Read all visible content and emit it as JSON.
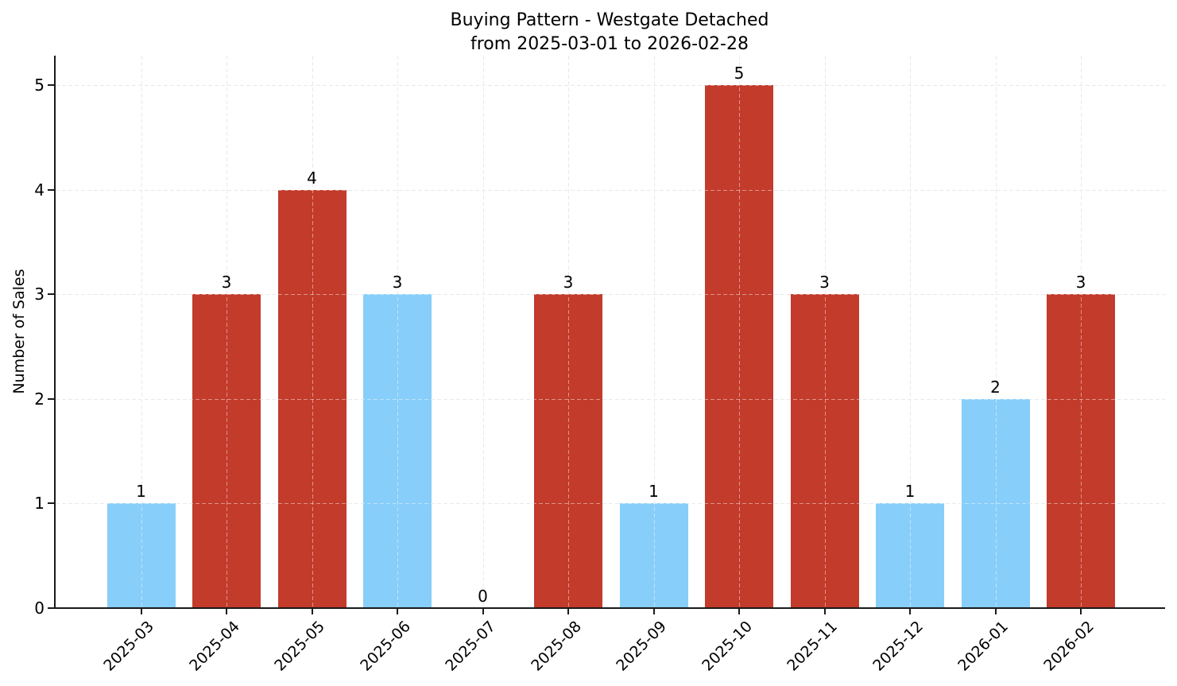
{
  "chart_data": {
    "type": "bar",
    "title": "Buying Pattern - Westgate Detached",
    "subtitle": "from 2025-03-01 to 2026-02-28",
    "ylabel": "Number of Sales",
    "xlabel": "",
    "categories": [
      "2025-03",
      "2025-04",
      "2025-05",
      "2025-06",
      "2025-07",
      "2025-08",
      "2025-09",
      "2025-10",
      "2025-11",
      "2025-12",
      "2026-01",
      "2026-02"
    ],
    "values": [
      1,
      3,
      4,
      3,
      0,
      3,
      1,
      5,
      3,
      1,
      2,
      3
    ],
    "value_labels": [
      "1",
      "3",
      "4",
      "3",
      "0",
      "3",
      "1",
      "5",
      "3",
      "1",
      "2",
      "3"
    ],
    "bar_colors": [
      "skyblue",
      "brick",
      "brick",
      "skyblue",
      "none",
      "brick",
      "skyblue",
      "brick",
      "brick",
      "skyblue",
      "skyblue",
      "brick"
    ],
    "palette": {
      "skyblue": "#87CEFA",
      "brick": "#C23B2B"
    },
    "yticks": [
      "0",
      "1",
      "2",
      "3",
      "4",
      "5"
    ],
    "ylim": [
      0,
      5.28
    ],
    "grid": {
      "style": "dashed",
      "orientation": "both"
    },
    "grid_color": "#d7d7d7",
    "axis_color": "#1a1a1a",
    "text_color": "#000000",
    "background_color": "#ffffff",
    "legend": "none"
  }
}
